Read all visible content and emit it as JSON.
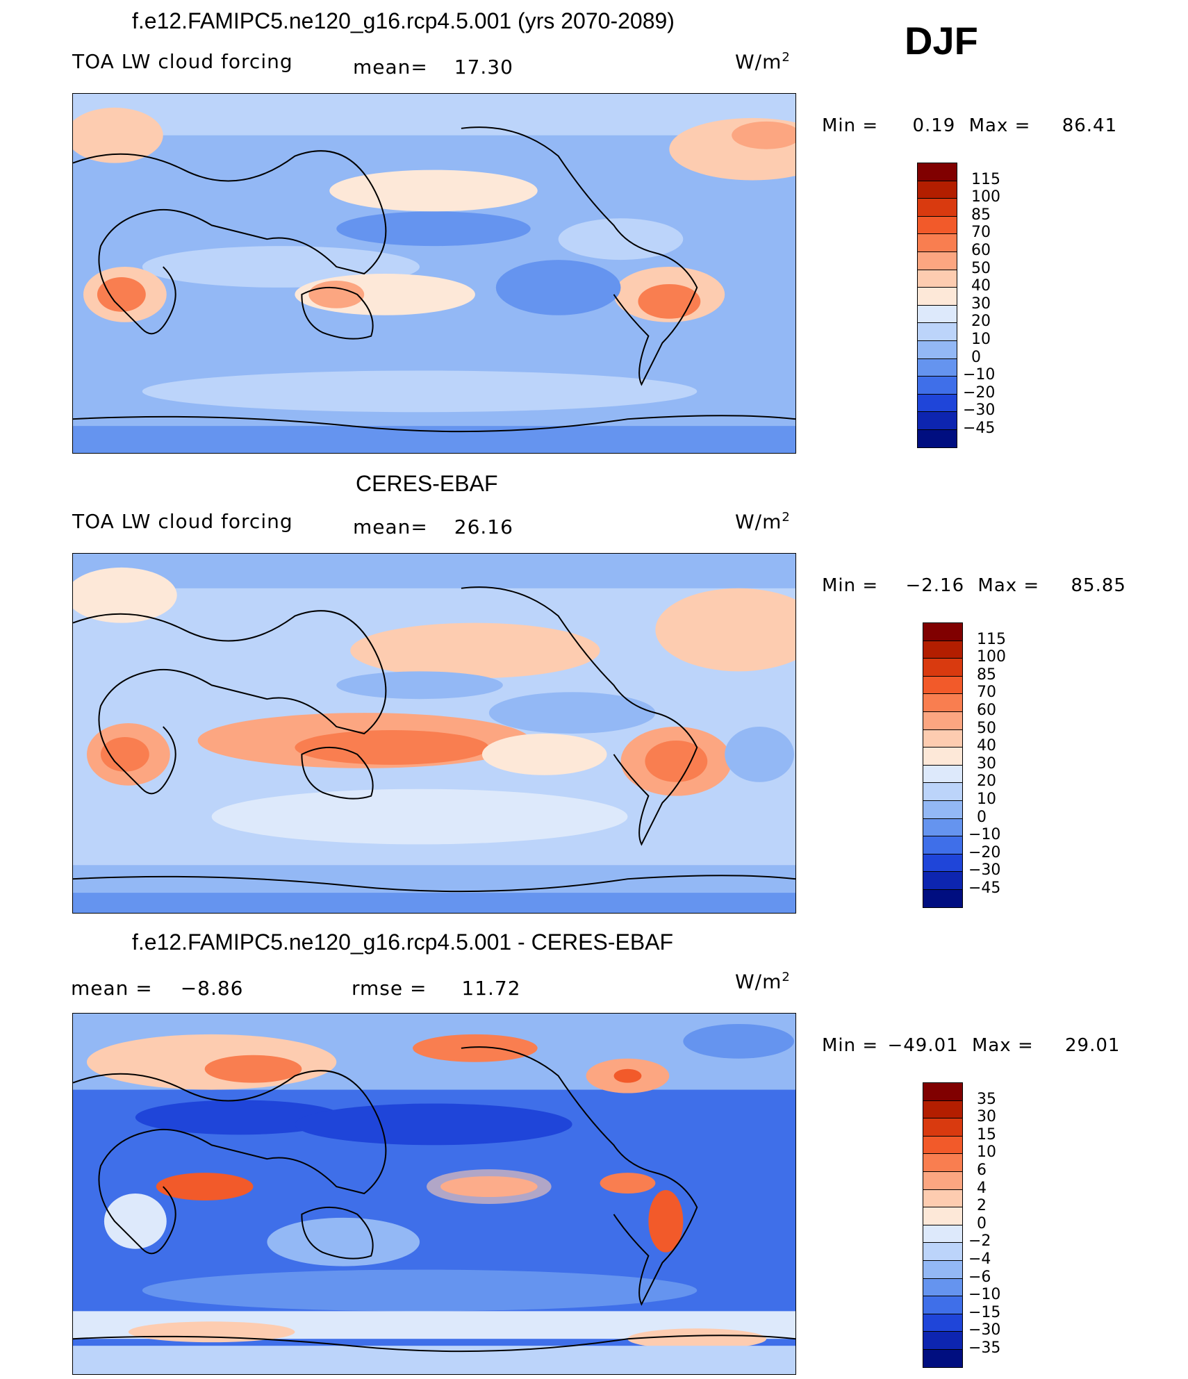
{
  "season": "DJF",
  "panels": [
    {
      "title": "f.e12.FAMIPC5.ne120_g16.rcp4.5.001 (yrs 2070-2089)",
      "left_label": "TOA LW cloud forcing",
      "mean_label": "mean=",
      "mean_value": "17.30",
      "units": "W/m",
      "units_sup": "2",
      "min_label": "Min =",
      "min_value": "0.19",
      "max_label": "Max =",
      "max_value": "86.41",
      "colorbar_ticks": [
        "115",
        "100",
        "85",
        "70",
        "60",
        "50",
        "40",
        "30",
        "20",
        "10",
        "0",
        "−10",
        "−20",
        "−30",
        "−45"
      ],
      "colorbar_colors": [
        "#800000",
        "#b31e00",
        "#d93a0f",
        "#f25a2a",
        "#f97e50",
        "#fca681",
        "#fdccb0",
        "#fde8d8",
        "#dde9fb",
        "#bcd4fa",
        "#93b8f5",
        "#6594ef",
        "#3f6fe9",
        "#1f45d9",
        "#0d25b0",
        "#000e80"
      ]
    },
    {
      "title": "CERES-EBAF",
      "left_label": "TOA LW cloud forcing",
      "mean_label": "mean=",
      "mean_value": "26.16",
      "units": "W/m",
      "units_sup": "2",
      "min_label": "Min =",
      "min_value": "−2.16",
      "max_label": "Max =",
      "max_value": "85.85",
      "colorbar_ticks": [
        "115",
        "100",
        "85",
        "70",
        "60",
        "50",
        "40",
        "30",
        "20",
        "10",
        "0",
        "−10",
        "−20",
        "−30",
        "−45"
      ],
      "colorbar_colors": [
        "#800000",
        "#b31e00",
        "#d93a0f",
        "#f25a2a",
        "#f97e50",
        "#fca681",
        "#fdccb0",
        "#fde8d8",
        "#dde9fb",
        "#bcd4fa",
        "#93b8f5",
        "#6594ef",
        "#3f6fe9",
        "#1f45d9",
        "#0d25b0",
        "#000e80"
      ]
    },
    {
      "title": "f.e12.FAMIPC5.ne120_g16.rcp4.5.001 - CERES-EBAF",
      "mean_label": "mean =",
      "mean_value": "−8.86",
      "rmse_label": "rmse =",
      "rmse_value": "11.72",
      "units": "W/m",
      "units_sup": "2",
      "min_label": "Min =",
      "min_value": "−49.01",
      "max_label": "Max =",
      "max_value": "29.01",
      "colorbar_ticks": [
        "35",
        "30",
        "15",
        "10",
        "6",
        "4",
        "2",
        "0",
        "−2",
        "−4",
        "−6",
        "−10",
        "−15",
        "−30",
        "−35"
      ],
      "colorbar_colors": [
        "#800000",
        "#b31e00",
        "#d93a0f",
        "#f25a2a",
        "#f97e50",
        "#fca681",
        "#fdccb0",
        "#fde8d8",
        "#dde9fb",
        "#bcd4fa",
        "#93b8f5",
        "#6594ef",
        "#3f6fe9",
        "#1f45d9",
        "#0d25b0",
        "#000e80"
      ]
    }
  ]
}
